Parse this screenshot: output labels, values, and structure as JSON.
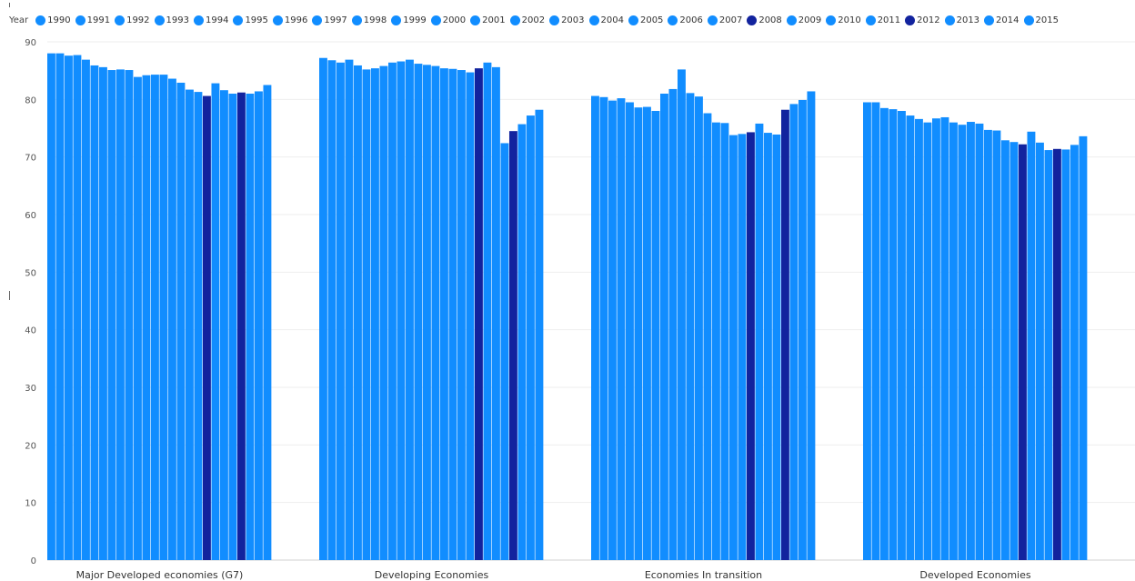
{
  "chart_data": {
    "type": "bar",
    "legend_title": "Year",
    "legend_position": "top-left",
    "grid": true,
    "ylim": [
      0,
      90
    ],
    "yticks": [
      0,
      10,
      20,
      30,
      40,
      50,
      60,
      70,
      80,
      90
    ],
    "colors": {
      "default": "#118dff",
      "highlight": "#12239e"
    },
    "highlight_years": [
      "2008",
      "2012"
    ],
    "categories": [
      "Major Developed economies (G7)",
      "Developing Economies",
      "Economies In transition",
      "Developed Economies"
    ],
    "series": [
      {
        "name": "1990",
        "values": [
          88.0,
          87.2,
          80.6,
          79.5
        ]
      },
      {
        "name": "1991",
        "values": [
          88.0,
          86.8,
          80.4,
          79.5
        ]
      },
      {
        "name": "1992",
        "values": [
          87.6,
          86.4,
          79.8,
          78.5
        ]
      },
      {
        "name": "1993",
        "values": [
          87.7,
          86.9,
          80.2,
          78.3
        ]
      },
      {
        "name": "1994",
        "values": [
          86.9,
          85.9,
          79.5,
          78.0
        ]
      },
      {
        "name": "1995",
        "values": [
          85.9,
          85.2,
          78.6,
          77.2
        ]
      },
      {
        "name": "1996",
        "values": [
          85.6,
          85.4,
          78.7,
          76.6
        ]
      },
      {
        "name": "1997",
        "values": [
          85.1,
          85.8,
          78.0,
          76.0
        ]
      },
      {
        "name": "1998",
        "values": [
          85.2,
          86.4,
          81.0,
          76.7
        ]
      },
      {
        "name": "1999",
        "values": [
          85.1,
          86.6,
          81.8,
          76.9
        ]
      },
      {
        "name": "2000",
        "values": [
          83.9,
          86.9,
          85.2,
          76.0
        ]
      },
      {
        "name": "2001",
        "values": [
          84.2,
          86.2,
          81.1,
          75.6
        ]
      },
      {
        "name": "2002",
        "values": [
          84.3,
          86.0,
          80.5,
          76.1
        ]
      },
      {
        "name": "2003",
        "values": [
          84.3,
          85.8,
          77.6,
          75.8
        ]
      },
      {
        "name": "2004",
        "values": [
          83.6,
          85.4,
          76.0,
          74.7
        ]
      },
      {
        "name": "2005",
        "values": [
          82.9,
          85.3,
          75.9,
          74.6
        ]
      },
      {
        "name": "2006",
        "values": [
          81.7,
          85.1,
          73.8,
          72.9
        ]
      },
      {
        "name": "2007",
        "values": [
          81.3,
          84.7,
          74.0,
          72.6
        ]
      },
      {
        "name": "2008",
        "values": [
          80.6,
          85.4,
          74.3,
          72.2
        ]
      },
      {
        "name": "2009",
        "values": [
          82.8,
          86.4,
          75.8,
          74.4
        ]
      },
      {
        "name": "2010",
        "values": [
          81.6,
          85.6,
          74.2,
          72.5
        ]
      },
      {
        "name": "2011",
        "values": [
          81.0,
          72.4,
          73.9,
          71.2
        ]
      },
      {
        "name": "2012",
        "values": [
          81.2,
          74.5,
          78.2,
          71.4
        ]
      },
      {
        "name": "2013",
        "values": [
          81.0,
          75.7,
          79.2,
          71.3
        ]
      },
      {
        "name": "2014",
        "values": [
          81.4,
          77.2,
          79.9,
          72.1
        ]
      },
      {
        "name": "2015",
        "values": [
          82.5,
          78.2,
          81.4,
          73.6
        ]
      }
    ]
  }
}
